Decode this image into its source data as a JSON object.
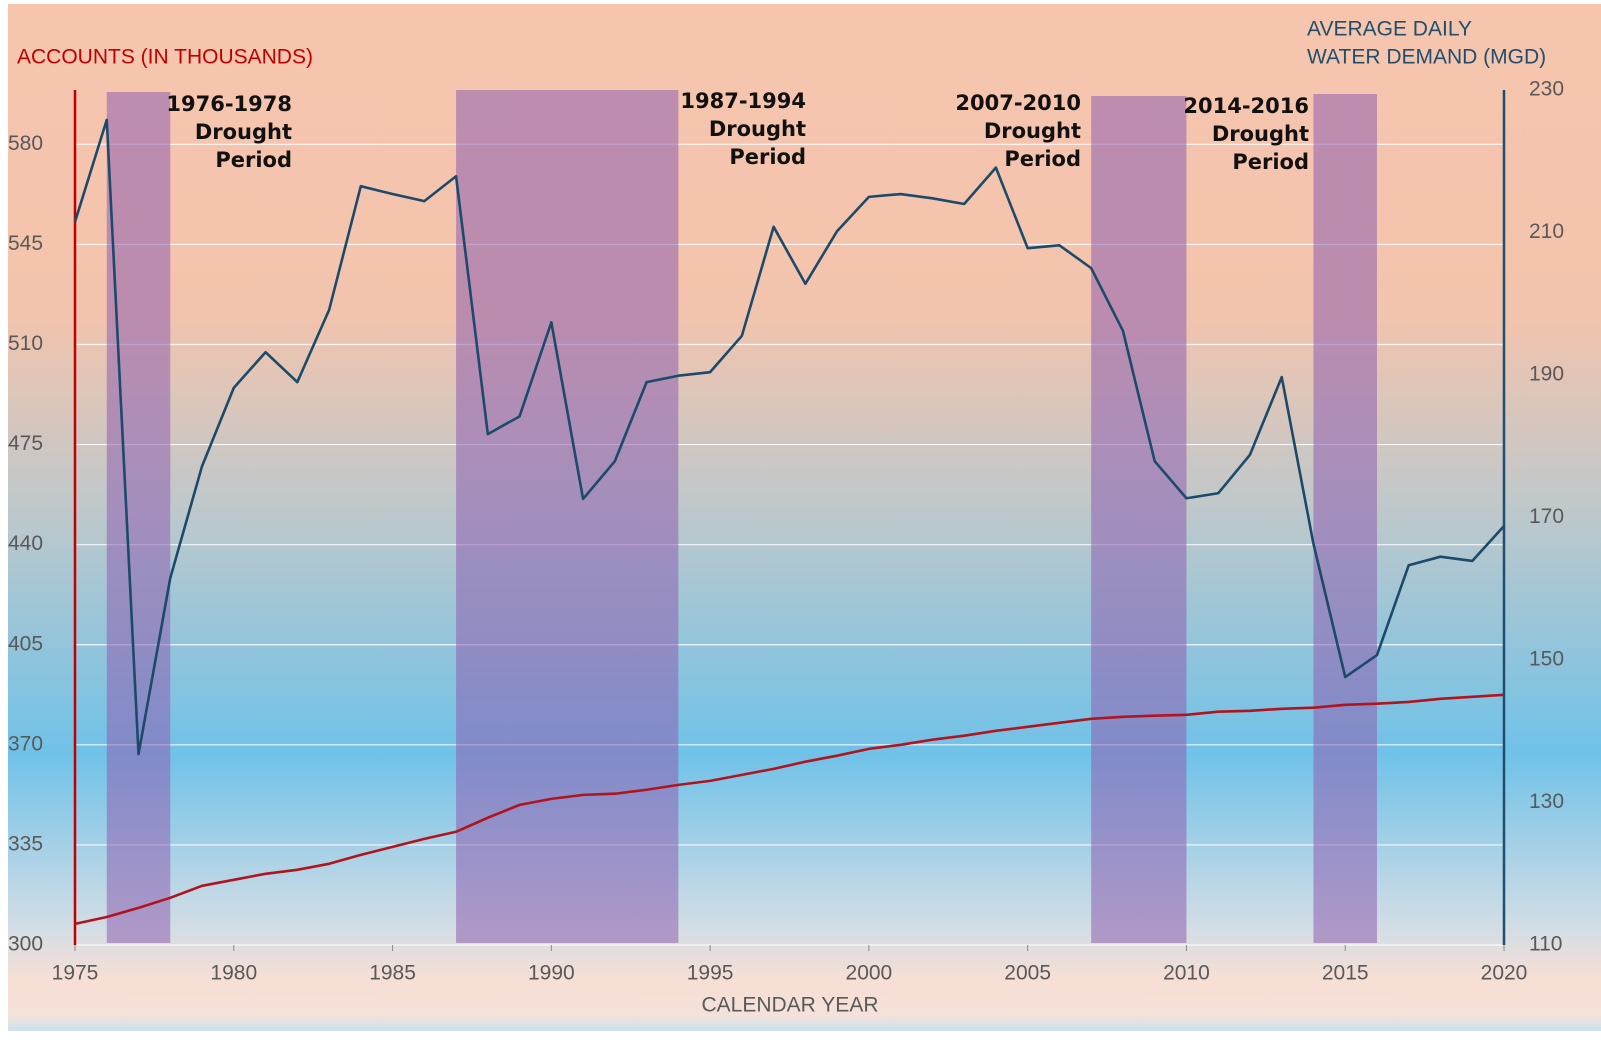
{
  "chart_data": {
    "type": "line",
    "y_axis_label": "ACCOUNTS (IN THOUSANDS)",
    "y2_axis_label": [
      "AVERAGE DAILY",
      "WATER DEMAND (MGD)"
    ],
    "x_axis_label": "CALENDAR YEAR",
    "x": [
      1975,
      1976,
      1977,
      1978,
      1979,
      1980,
      1981,
      1982,
      1983,
      1984,
      1985,
      1986,
      1987,
      1988,
      1989,
      1990,
      1991,
      1992,
      1993,
      1994,
      1995,
      1996,
      1997,
      1998,
      1999,
      2000,
      2001,
      2002,
      2003,
      2004,
      2005,
      2006,
      2007,
      2008,
      2009,
      2010,
      2011,
      2012,
      2013,
      2014,
      2015,
      2016,
      2017,
      2018,
      2019,
      2020
    ],
    "xlim": [
      1975,
      2020
    ],
    "xticks": [
      1975,
      1980,
      1985,
      1990,
      1995,
      2000,
      2005,
      2010,
      2015,
      2020
    ],
    "ylim": [
      300,
      599
    ],
    "yticks": [
      300,
      335,
      370,
      405,
      440,
      475,
      510,
      545,
      580
    ],
    "y2lim": [
      110,
      230
    ],
    "y2ticks": [
      110,
      130,
      150,
      170,
      190,
      210,
      230
    ],
    "grid": true,
    "series": [
      {
        "name": "Average Daily Water Demand",
        "color": "#1c4a6a",
        "axis": "y2",
        "values": [
          211.5,
          225.8,
          136.8,
          161.5,
          177.2,
          188.2,
          193.2,
          189.0,
          199.1,
          216.5,
          215.4,
          214.4,
          217.9,
          181.7,
          184.2,
          197.4,
          172.6,
          177.9,
          189.0,
          189.9,
          190.4,
          195.5,
          210.8,
          202.8,
          210.2,
          215.0,
          215.4,
          214.8,
          214.0,
          219.1,
          207.8,
          208.2,
          205.0,
          196.2,
          177.9,
          172.7,
          173.4,
          178.8,
          189.7,
          166.3,
          147.6,
          150.7,
          163.3,
          164.5,
          163.9,
          168.8
        ]
      },
      {
        "name": "Accounts",
        "color": "#b0151f",
        "values": [
          307.4,
          309.8,
          313.0,
          316.5,
          320.7,
          322.8,
          324.9,
          326.3,
          328.4,
          331.5,
          334.3,
          337.1,
          339.6,
          344.5,
          349.0,
          351.1,
          352.5,
          352.9,
          354.3,
          356.0,
          357.4,
          359.5,
          361.6,
          364.1,
          366.2,
          368.6,
          370.0,
          371.8,
          373.2,
          374.9,
          376.3,
          377.7,
          379.1,
          379.8,
          380.2,
          380.5,
          381.6,
          381.9,
          382.6,
          383.0,
          384.0,
          384.4,
          385.0,
          386.1,
          386.8,
          387.5
        ]
      }
    ],
    "drought_periods": [
      {
        "label": "1976-1978",
        "note": [
          "Drought",
          "Period"
        ],
        "start": 1976,
        "end": 1978
      },
      {
        "label": "1987-1994",
        "note": [
          "Drought",
          "Period"
        ],
        "start": 1987,
        "end": 1994
      },
      {
        "label": "2007-2010",
        "note": [
          "Drought",
          "Period"
        ],
        "start": 2007,
        "end": 2010
      },
      {
        "label": "2014-2016",
        "note": [
          "Drought",
          "Period"
        ],
        "start": 2014,
        "end": 2016
      }
    ],
    "drought_color": "#8e5fb0"
  }
}
